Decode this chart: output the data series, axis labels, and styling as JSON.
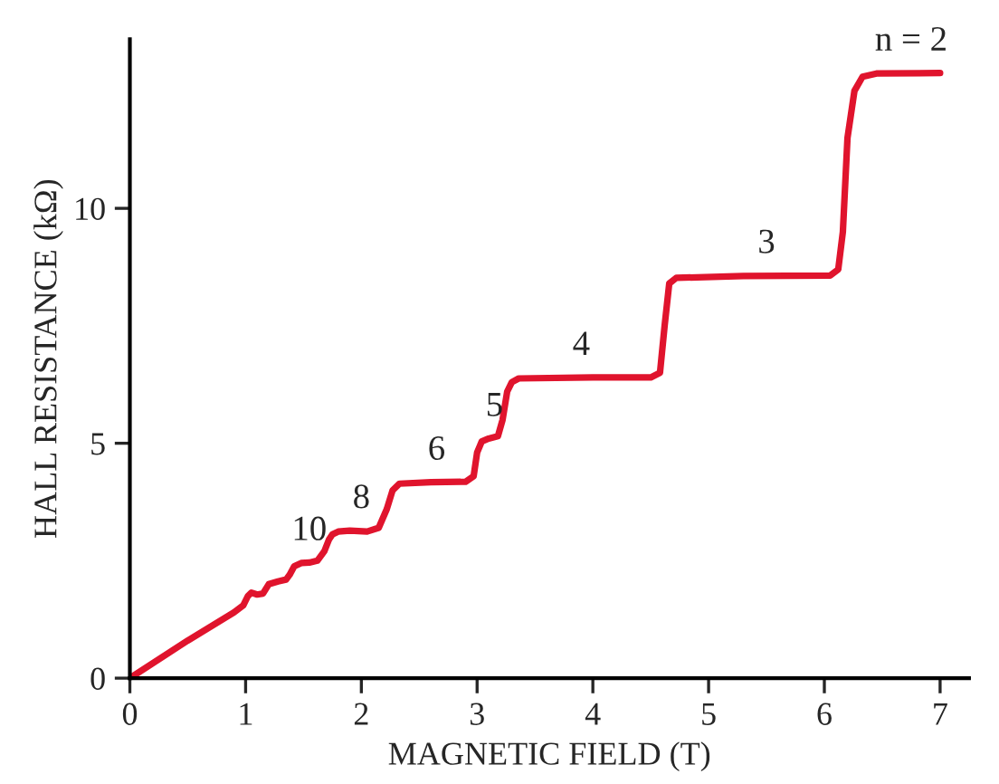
{
  "chart_data": {
    "type": "line",
    "xlabel": "MAGNETIC FIELD (T)",
    "ylabel": "HALL RESISTANCE (kΩ)",
    "series": [
      {
        "color": "#e0142d",
        "x": [
          0,
          0.5,
          0.9,
          0.98,
          1.02,
          1.05,
          1.1,
          1.15,
          1.2,
          1.28,
          1.35,
          1.38,
          1.42,
          1.48,
          1.55,
          1.62,
          1.68,
          1.72,
          1.75,
          1.8,
          1.9,
          2.05,
          2.15,
          2.22,
          2.27,
          2.33,
          2.6,
          2.9,
          2.97,
          3.0,
          3.04,
          3.1,
          3.18,
          3.22,
          3.26,
          3.3,
          3.36,
          4.0,
          4.5,
          4.58,
          4.62,
          4.66,
          4.72,
          5.3,
          6.05,
          6.12,
          6.16,
          6.2,
          6.26,
          6.33,
          6.45,
          7.0
        ],
        "values": [
          0,
          0.8,
          1.4,
          1.55,
          1.75,
          1.82,
          1.78,
          1.8,
          2.0,
          2.06,
          2.1,
          2.2,
          2.38,
          2.45,
          2.46,
          2.5,
          2.7,
          2.95,
          3.06,
          3.12,
          3.14,
          3.12,
          3.2,
          3.6,
          4.0,
          4.14,
          4.17,
          4.18,
          4.3,
          4.8,
          5.04,
          5.1,
          5.15,
          5.5,
          6.1,
          6.3,
          6.38,
          6.4,
          6.4,
          6.5,
          7.5,
          8.4,
          8.52,
          8.56,
          8.57,
          8.7,
          9.5,
          11.5,
          12.5,
          12.8,
          12.87,
          12.88
        ]
      }
    ],
    "xlim": [
      0,
      7.25
    ],
    "ylim": [
      0,
      13.6
    ],
    "xticks": [
      0,
      1,
      2,
      3,
      4,
      5,
      6,
      7
    ],
    "yticks": [
      0,
      5,
      10
    ],
    "grid": false,
    "marker": "none",
    "line_style": "solid",
    "annotations": [
      {
        "text": "10",
        "x": 1.55,
        "y": 2.46
      },
      {
        "text": "8",
        "x": 2.0,
        "y": 3.14
      },
      {
        "text": "6",
        "x": 2.65,
        "y": 4.17
      },
      {
        "text": "5",
        "x": 3.15,
        "y": 5.1
      },
      {
        "text": "4",
        "x": 3.9,
        "y": 6.4
      },
      {
        "text": "3",
        "x": 5.5,
        "y": 8.57
      },
      {
        "text": "n = 2",
        "x": 6.75,
        "y": 12.88
      }
    ]
  }
}
